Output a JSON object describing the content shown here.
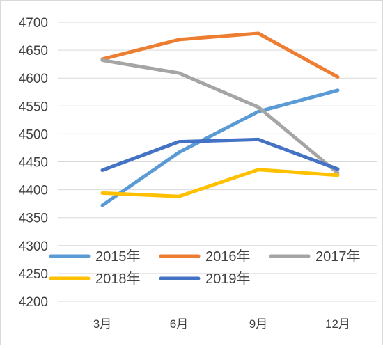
{
  "chart_data": {
    "type": "line",
    "categories": [
      "3月",
      "6月",
      "9月",
      "12月"
    ],
    "y_ticks": [
      "4200",
      "4250",
      "4300",
      "4350",
      "4400",
      "4450",
      "4500",
      "4550",
      "4600",
      "4650",
      "4700"
    ],
    "ylim": [
      4200,
      4700
    ],
    "grid": true,
    "legend_position": "bottom-overlay",
    "series": [
      {
        "name": "2015年",
        "color": "#5b9bd5",
        "values": [
          4372,
          4467,
          4540,
          4578
        ]
      },
      {
        "name": "2016年",
        "color": "#ed7d31",
        "values": [
          4634,
          4669,
          4680,
          4602
        ]
      },
      {
        "name": "2017年",
        "color": "#a5a5a5",
        "values": [
          4632,
          4609,
          4548,
          4430
        ]
      },
      {
        "name": "2018年",
        "color": "#ffc000",
        "values": [
          4394,
          4388,
          4436,
          4426
        ]
      },
      {
        "name": "2019年",
        "color": "#4472c4",
        "values": [
          4435,
          4486,
          4490,
          4437
        ]
      }
    ]
  }
}
